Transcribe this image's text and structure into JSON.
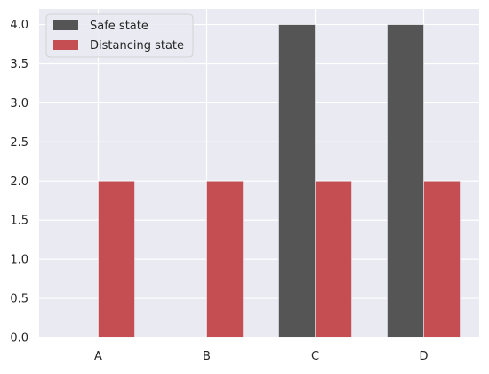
{
  "chart_data": {
    "type": "bar",
    "title": "",
    "xlabel": "",
    "ylabel": "",
    "categories": [
      "A",
      "B",
      "C",
      "D"
    ],
    "series": [
      {
        "name": "Safe state",
        "values": [
          0,
          0,
          4,
          4
        ],
        "color": "#555555"
      },
      {
        "name": "Distancing state",
        "values": [
          2,
          2,
          2,
          2
        ],
        "color": "#c44e52"
      }
    ],
    "ylim": [
      0,
      4.2
    ],
    "yticks": [
      "0.0",
      "0.5",
      "1.0",
      "1.5",
      "2.0",
      "2.5",
      "3.0",
      "3.5",
      "4.0"
    ],
    "grid": true,
    "legend_position": "top-left",
    "background_color": "#eaeaf2"
  }
}
